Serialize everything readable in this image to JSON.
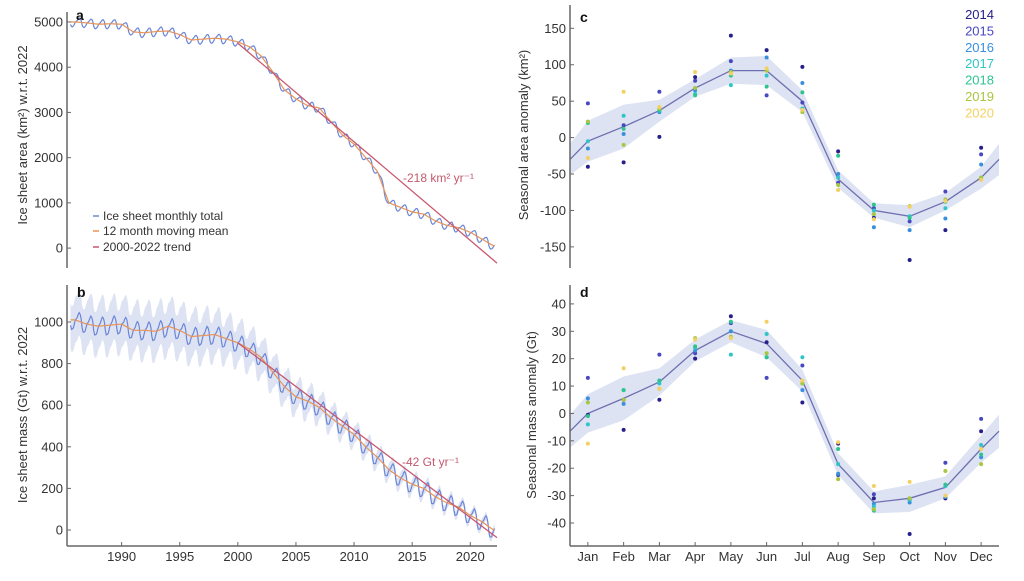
{
  "chart_data": [
    {
      "panel": "a",
      "type": "line",
      "ylabel": "Ice sheet area (km²) w.r.t. 2022",
      "ylim": [
        -440,
        5220
      ],
      "xlim": [
        1985.3,
        2022.3
      ],
      "yticks": [
        0,
        1000,
        2000,
        3000,
        4000,
        5000
      ],
      "x": [
        1986,
        1987,
        1988,
        1989,
        1990,
        1991,
        1992,
        1993,
        1994,
        1995,
        1996,
        1997,
        1998,
        1999,
        2000,
        2001,
        2002,
        2003,
        2004,
        2005,
        2006,
        2007,
        2008,
        2009,
        2010,
        2011,
        2012,
        2013,
        2014,
        2015,
        2016,
        2017,
        2018,
        2019,
        2020,
        2021,
        2022
      ],
      "series": [
        {
          "name": "12 month moving mean",
          "color": "#e8935a",
          "values": [
            5000,
            4980,
            4950,
            4960,
            4950,
            4780,
            4760,
            4790,
            4800,
            4720,
            4600,
            4620,
            4640,
            4620,
            4560,
            4450,
            4250,
            3900,
            3500,
            3300,
            3150,
            3100,
            2800,
            2500,
            2300,
            2000,
            1700,
            1000,
            900,
            800,
            750,
            600,
            500,
            450,
            350,
            200,
            50
          ]
        },
        {
          "name": "Ice sheet monthly total",
          "color": "#6a86d8",
          "seasonal_amplitude_from": "c"
        }
      ],
      "trend": {
        "name": "2000-2022 trend",
        "color": "#c9586e",
        "start_year": 2000,
        "start_value": 4530,
        "slope": -218,
        "label": "-218 km² yr⁻¹"
      },
      "legend": {
        "placement": "bottom-left",
        "entries": [
          "Ice sheet monthly total",
          "12 month moving mean",
          "2000-2022 trend"
        ]
      },
      "grid": false
    },
    {
      "panel": "b",
      "type": "line",
      "ylabel": "Ice sheet mass (Gt) w.r.t. 2022",
      "ylim": [
        -77,
        1178
      ],
      "xlim": [
        1985.3,
        2022.3
      ],
      "yticks": [
        0,
        200,
        400,
        600,
        800,
        1000
      ],
      "xticks": [
        1990,
        1995,
        2000,
        2005,
        2010,
        2015,
        2020
      ],
      "x": [
        1986,
        1987,
        1988,
        1989,
        1990,
        1991,
        1992,
        1993,
        1994,
        1995,
        1996,
        1997,
        1998,
        1999,
        2000,
        2001,
        2002,
        2003,
        2004,
        2005,
        2006,
        2007,
        2008,
        2009,
        2010,
        2011,
        2012,
        2013,
        2014,
        2015,
        2016,
        2017,
        2018,
        2019,
        2020,
        2021,
        2022
      ],
      "series": [
        {
          "name": "12 month moving mean",
          "color": "#e8935a",
          "values": [
            1010,
            990,
            980,
            985,
            990,
            960,
            960,
            955,
            980,
            960,
            930,
            935,
            940,
            920,
            900,
            870,
            830,
            760,
            690,
            640,
            620,
            590,
            540,
            500,
            460,
            400,
            350,
            290,
            250,
            220,
            200,
            160,
            130,
            110,
            70,
            40,
            0
          ]
        },
        {
          "name": "Ice sheet monthly total",
          "color": "#6a86d8",
          "seasonal_amplitude_from": "d"
        }
      ],
      "uncertainty": [
        110,
        110,
        110,
        110,
        110,
        110,
        110,
        110,
        110,
        110,
        105,
        105,
        100,
        95,
        90,
        85,
        80,
        75,
        70,
        65,
        60,
        55,
        50,
        45,
        40,
        38,
        36,
        34,
        32,
        30,
        28,
        26,
        24,
        22,
        20,
        20,
        20
      ],
      "band_color": "#dde3f2",
      "trend": {
        "name": "2000-2022 trend",
        "color": "#c9586e",
        "start_year": 2000,
        "start_value": 900,
        "slope": -42,
        "label": "-42 Gt yr⁻¹"
      },
      "grid": false
    },
    {
      "panel": "c",
      "type": "scatter",
      "ylabel": "Seasonal area anomaly (km²)",
      "ylim": [
        -179,
        182
      ],
      "xlim": [
        0.5,
        12.5
      ],
      "yticks": [
        -150,
        -100,
        -50,
        0,
        50,
        100,
        150
      ],
      "categories": [
        "Jan",
        "Feb",
        "Mar",
        "Apr",
        "May",
        "Jun",
        "Jul",
        "Aug",
        "Sep",
        "Oct",
        "Nov",
        "Dec"
      ],
      "mean": [
        -5,
        15,
        37,
        68,
        92,
        92,
        50,
        -57,
        -100,
        -108,
        -88,
        -55
      ],
      "band_halfwidth": [
        28,
        30,
        15,
        12,
        18,
        20,
        15,
        12,
        10,
        15,
        12,
        15
      ],
      "mean_color": "#6e6fb0",
      "band_color": "#dde3f2",
      "series": [
        {
          "name": "2014",
          "color": "#27208a",
          "values": [
            -40,
            -34,
            1,
            83,
            140,
            120,
            97,
            -19,
            -110,
            -168,
            -127,
            -14
          ]
        },
        {
          "name": "2015",
          "color": "#4848c0",
          "values": [
            47,
            17,
            63,
            78,
            105,
            58,
            48,
            -62,
            -97,
            -115,
            -74,
            -23
          ]
        },
        {
          "name": "2016",
          "color": "#3a8fdd",
          "values": [
            -15,
            5,
            35,
            65,
            92,
            110,
            75,
            -50,
            -123,
            -127,
            -111,
            -37
          ]
        },
        {
          "name": "2017",
          "color": "#2ec4c8",
          "values": [
            -5,
            30,
            37,
            60,
            72,
            85,
            40,
            -55,
            -100,
            -108,
            -97,
            -55
          ]
        },
        {
          "name": "2018",
          "color": "#2ec490",
          "values": [
            20,
            12,
            38,
            58,
            85,
            70,
            62,
            -25,
            -92,
            -110,
            -88,
            -57
          ]
        },
        {
          "name": "2019",
          "color": "#a9c640",
          "values": [
            22,
            -10,
            40,
            68,
            90,
            92,
            35,
            -65,
            -105,
            -94,
            -85,
            -55
          ]
        },
        {
          "name": "2020",
          "color": "#f4d060",
          "values": [
            -28,
            63,
            42,
            90,
            88,
            95,
            38,
            -72,
            -112,
            -95,
            -87,
            -58
          ]
        }
      ],
      "legend": {
        "placement": "top-right"
      },
      "grid": false
    },
    {
      "panel": "d",
      "type": "scatter",
      "ylabel": "Seasonal mass anomaly (Gt)",
      "ylim": [
        -48.4,
        46.9
      ],
      "xlim": [
        0.5,
        12.5
      ],
      "yticks": [
        -40,
        -30,
        -20,
        -10,
        0,
        10,
        20,
        30,
        40
      ],
      "categories": [
        "Jan",
        "Feb",
        "Mar",
        "Apr",
        "May",
        "Jun",
        "Jul",
        "Aug",
        "Sep",
        "Oct",
        "Nov",
        "Dec"
      ],
      "mean": [
        0,
        5.5,
        11.5,
        23,
        30,
        25.5,
        12,
        -18.5,
        -32.5,
        -31,
        -27,
        -13
      ],
      "band_halfwidth": [
        7,
        8,
        5,
        4,
        4,
        5,
        4,
        4,
        4,
        5,
        4,
        5
      ],
      "mean_color": "#6e6fb0",
      "band_color": "#dde3f2",
      "series": [
        {
          "name": "2014",
          "color": "#27208a",
          "values": [
            -0.5,
            -6,
            5,
            20,
            35.5,
            26,
            4,
            -11,
            -31,
            -44,
            -31,
            -6.5
          ]
        },
        {
          "name": "2015",
          "color": "#4848c0",
          "values": [
            13,
            5,
            21.5,
            22,
            33,
            13,
            17.5,
            -22.5,
            -29.5,
            -31.5,
            -18,
            -2
          ]
        },
        {
          "name": "2016",
          "color": "#3a8fdd",
          "values": [
            5.5,
            3.5,
            12,
            23,
            30,
            20.5,
            8.5,
            -22,
            -33,
            -32.5,
            -30.5,
            -16
          ]
        },
        {
          "name": "2017",
          "color": "#2ec4c8",
          "values": [
            -4,
            8.5,
            11,
            24,
            21.5,
            29,
            20.5,
            -18.5,
            -34,
            -31.5,
            -26.5,
            -11.5
          ]
        },
        {
          "name": "2018",
          "color": "#2ec490",
          "values": [
            -1,
            8.5,
            12,
            24.5,
            33.5,
            20.5,
            11,
            -13,
            -35.5,
            -31,
            -26,
            -15
          ]
        },
        {
          "name": "2019",
          "color": "#a9c640",
          "values": [
            4,
            5,
            9,
            27.5,
            28,
            22,
            11,
            -24,
            -35,
            -31,
            -21,
            -18.5
          ]
        },
        {
          "name": "2020",
          "color": "#f4d060",
          "values": [
            -11,
            16.5,
            9,
            27,
            27.5,
            33.5,
            12,
            -10.5,
            -26.5,
            -25,
            -30,
            -13
          ]
        }
      ],
      "grid": false
    }
  ],
  "labels": {
    "a": "a",
    "b": "b",
    "c": "c",
    "d": "d"
  }
}
